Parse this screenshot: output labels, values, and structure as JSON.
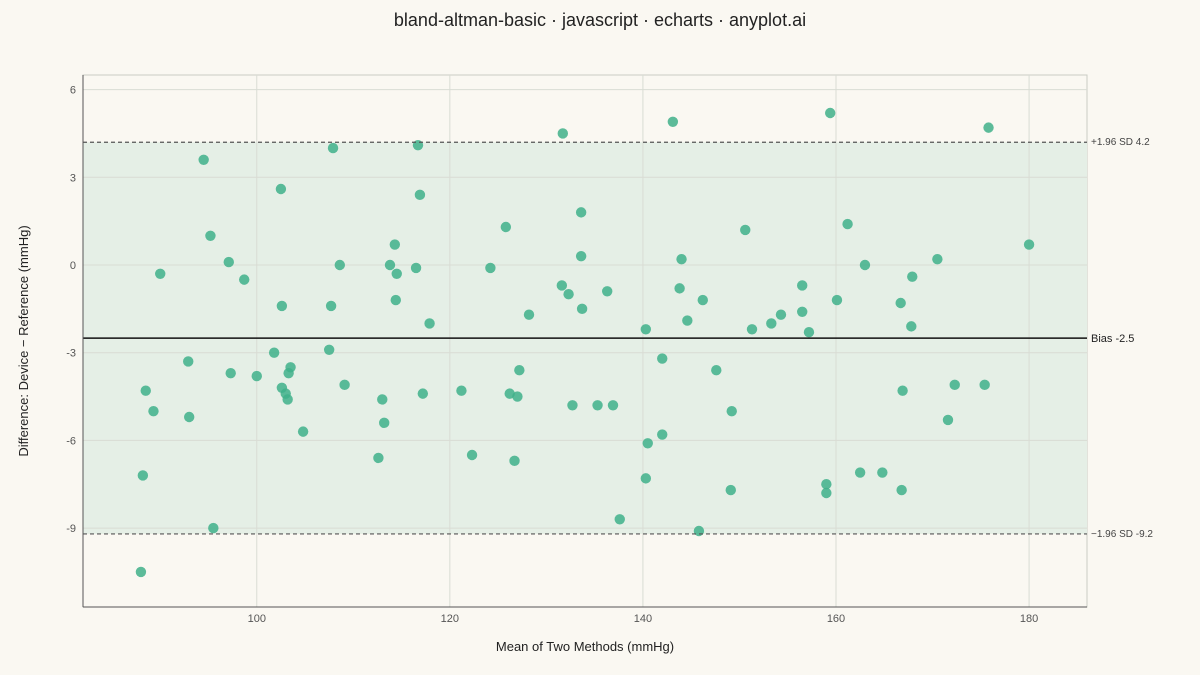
{
  "title": "bland-altman-basic · javascript · echarts · anyplot.ai",
  "chart_data": {
    "type": "scatter",
    "xlabel": "Mean of Two Methods (mmHg)",
    "ylabel": "Difference: Device − Reference (mmHg)",
    "xlim": [
      82,
      186
    ],
    "ylim": [
      -11.7,
      6.5
    ],
    "xticks": [
      100,
      120,
      140,
      160,
      180
    ],
    "yticks": [
      6,
      3,
      0,
      -3,
      -6,
      -9
    ],
    "bias": -2.5,
    "upper_loa": 4.2,
    "lower_loa": -9.2,
    "bias_label": "Bias -2.5",
    "upper_label": "+1.96 SD  4.2",
    "lower_label": "−1.96 SD  -9.2",
    "colors": {
      "point": "#3FB08A",
      "band": "#E5EFE6",
      "bias_line": "#111111",
      "loa_line": "#555555",
      "grid": "#D9DCD4"
    },
    "points": [
      [
        88.0,
        -10.5
      ],
      [
        88.2,
        -7.2
      ],
      [
        88.5,
        -4.3
      ],
      [
        89.3,
        -5.0
      ],
      [
        90.0,
        -0.3
      ],
      [
        92.9,
        -3.3
      ],
      [
        93.0,
        -5.2
      ],
      [
        94.5,
        3.6
      ],
      [
        95.2,
        1.0
      ],
      [
        95.5,
        -9.0
      ],
      [
        97.1,
        0.1
      ],
      [
        97.3,
        -3.7
      ],
      [
        98.7,
        -0.5
      ],
      [
        100.0,
        -3.8
      ],
      [
        101.8,
        -3.0
      ],
      [
        102.5,
        2.6
      ],
      [
        102.6,
        -1.4
      ],
      [
        102.6,
        -4.2
      ],
      [
        103.0,
        -4.4
      ],
      [
        103.2,
        -4.6
      ],
      [
        103.3,
        -3.7
      ],
      [
        103.5,
        -3.5
      ],
      [
        104.8,
        -5.7
      ],
      [
        107.5,
        -2.9
      ],
      [
        107.7,
        -1.4
      ],
      [
        107.9,
        4.0
      ],
      [
        108.6,
        0.0
      ],
      [
        109.1,
        -4.1
      ],
      [
        112.6,
        -6.6
      ],
      [
        113.0,
        -4.6
      ],
      [
        113.2,
        -5.4
      ],
      [
        113.8,
        0.0
      ],
      [
        114.3,
        0.7
      ],
      [
        114.5,
        -0.3
      ],
      [
        114.4,
        -1.2
      ],
      [
        116.5,
        -0.1
      ],
      [
        116.7,
        4.1
      ],
      [
        116.9,
        2.4
      ],
      [
        117.2,
        -4.4
      ],
      [
        117.9,
        -2.0
      ],
      [
        121.2,
        -4.3
      ],
      [
        122.3,
        -6.5
      ],
      [
        124.2,
        -0.1
      ],
      [
        125.8,
        1.3
      ],
      [
        126.2,
        -4.4
      ],
      [
        126.7,
        -6.7
      ],
      [
        127.0,
        -4.5
      ],
      [
        127.2,
        -3.6
      ],
      [
        128.2,
        -1.7
      ],
      [
        131.7,
        4.5
      ],
      [
        131.6,
        -0.7
      ],
      [
        132.3,
        -1.0
      ],
      [
        132.7,
        -4.8
      ],
      [
        133.6,
        1.8
      ],
      [
        133.6,
        0.3
      ],
      [
        133.7,
        -1.5
      ],
      [
        135.3,
        -4.8
      ],
      [
        136.3,
        -0.9
      ],
      [
        136.9,
        -4.8
      ],
      [
        137.6,
        -8.7
      ],
      [
        140.3,
        -7.3
      ],
      [
        140.3,
        -2.2
      ],
      [
        140.5,
        -6.1
      ],
      [
        142.0,
        -3.2
      ],
      [
        142.0,
        -5.8
      ],
      [
        143.1,
        4.9
      ],
      [
        143.8,
        -0.8
      ],
      [
        144.0,
        0.2
      ],
      [
        144.6,
        -1.9
      ],
      [
        145.8,
        -9.1
      ],
      [
        146.2,
        -1.2
      ],
      [
        147.6,
        -3.6
      ],
      [
        149.1,
        -7.7
      ],
      [
        149.2,
        -5.0
      ],
      [
        150.6,
        1.2
      ],
      [
        151.3,
        -2.2
      ],
      [
        153.3,
        -2.0
      ],
      [
        154.3,
        -1.7
      ],
      [
        156.5,
        -0.7
      ],
      [
        156.5,
        -1.6
      ],
      [
        157.2,
        -2.3
      ],
      [
        159.0,
        -7.5
      ],
      [
        159.0,
        -7.8
      ],
      [
        159.4,
        5.2
      ],
      [
        160.1,
        -1.2
      ],
      [
        161.2,
        1.4
      ],
      [
        162.5,
        -7.1
      ],
      [
        163.0,
        0.0
      ],
      [
        164.8,
        -7.1
      ],
      [
        166.7,
        -1.3
      ],
      [
        166.8,
        -7.7
      ],
      [
        166.9,
        -4.3
      ],
      [
        167.8,
        -2.1
      ],
      [
        167.9,
        -0.4
      ],
      [
        170.5,
        0.2
      ],
      [
        171.6,
        -5.3
      ],
      [
        172.3,
        -4.1
      ],
      [
        175.4,
        -4.1
      ],
      [
        175.8,
        4.7
      ],
      [
        180.0,
        0.7
      ]
    ]
  }
}
